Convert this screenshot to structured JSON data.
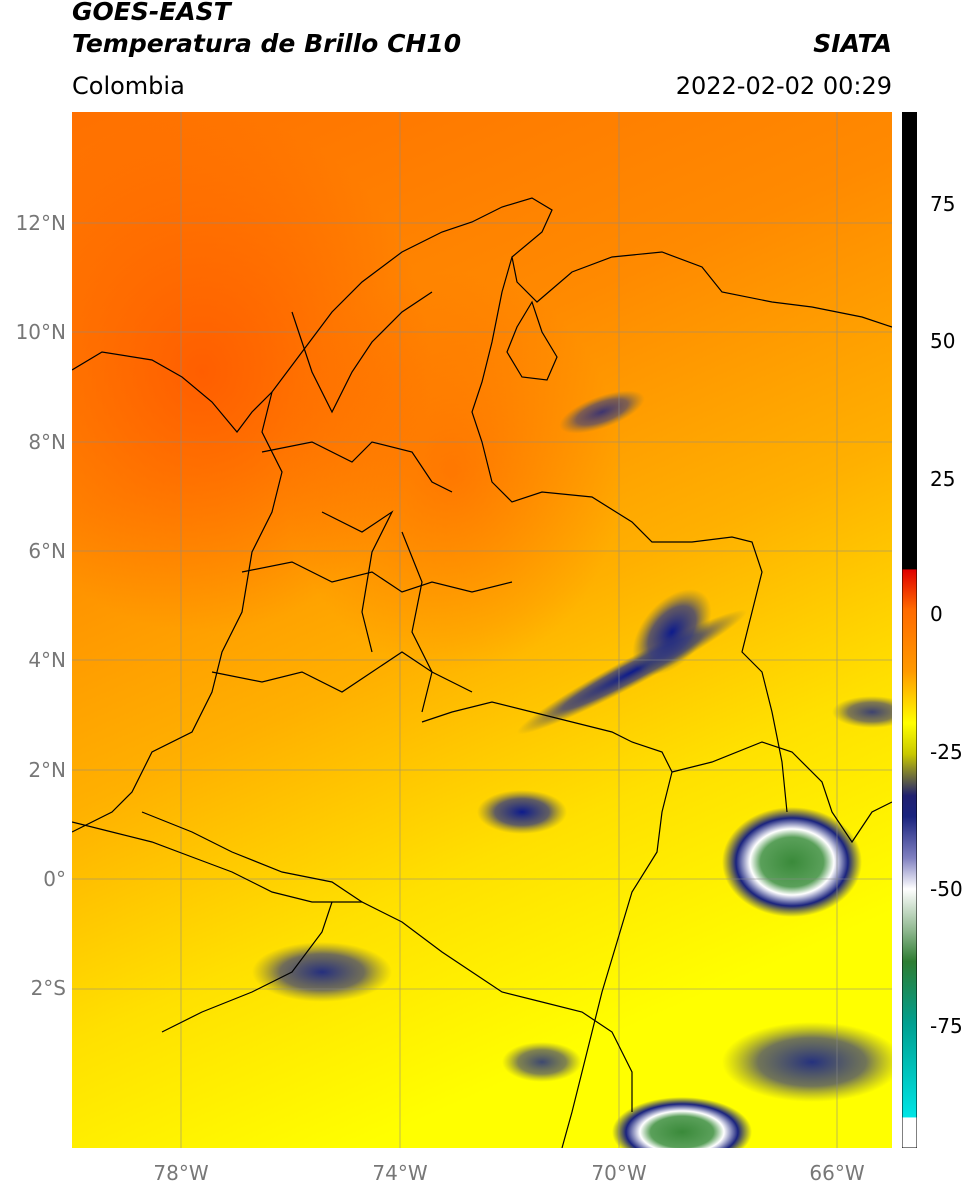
{
  "header": {
    "satellite": "GOES-EAST",
    "product": "Temperatura de Brillo CH10",
    "region": "Colombia",
    "brand": "SIATA",
    "datetime": "2022-02-02 00:29"
  },
  "map": {
    "lat_range": [
      -4.9,
      14.0
    ],
    "lon_range": [
      -80.0,
      -65.0
    ],
    "lat_labels": [
      "12°N",
      "10°N",
      "8°N",
      "6°N",
      "4°N",
      "2°N",
      "0°",
      "2°S"
    ],
    "lon_labels": [
      "78°W",
      "74°W",
      "70°W",
      "66°W"
    ],
    "grid": true
  },
  "colorbar": {
    "range": [
      -95,
      90
    ],
    "ticks": [
      "75",
      "50",
      "25",
      "0",
      "-25",
      "-50",
      "-75"
    ],
    "colors": {
      "warm": "#ff6a00",
      "mid": "#ffb000",
      "cold": "#ffff00",
      "deep": "#1a237e",
      "white": "#ffffff",
      "green": "#2e7d32",
      "cyan": "#00e5e5",
      "red": "#e00000",
      "black": "#000000"
    }
  }
}
